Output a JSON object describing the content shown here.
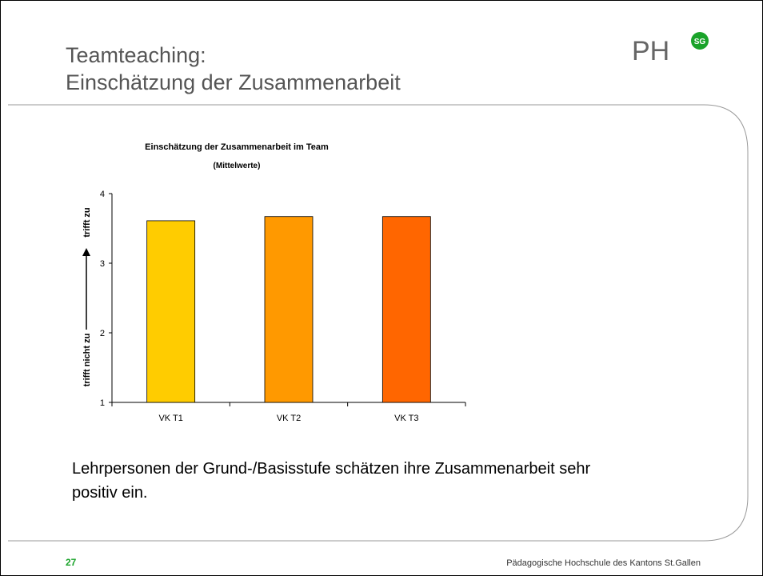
{
  "slide": {
    "title_lines": [
      "Teamteaching:",
      "Einschätzung der Zusammenarbeit"
    ],
    "logo": "PH",
    "logo_badge": "SG",
    "body": [
      "Lehrpersonen der Grund-/Basisstufe schätzen ihre Zusammenarbeit sehr",
      "positiv ein."
    ],
    "page_number": "27",
    "footer": "Pädagogische Hochschule des Kantons St.Gallen"
  },
  "chart_data": {
    "type": "bar",
    "title": "Einschätzung der Zusammenarbeit im Team",
    "subtitle": "(Mittelwerte)",
    "y_label_low": "trifft nicht zu",
    "y_label_high": "trifft zu",
    "categories": [
      "VK T1",
      "VK T2",
      "VK T3"
    ],
    "values": [
      3.61,
      3.67,
      3.67
    ],
    "colors": [
      "#ffcc00",
      "#ff9900",
      "#ff6600"
    ],
    "ylim": [
      1,
      4
    ],
    "yticks": [
      1,
      2,
      3,
      4
    ]
  }
}
